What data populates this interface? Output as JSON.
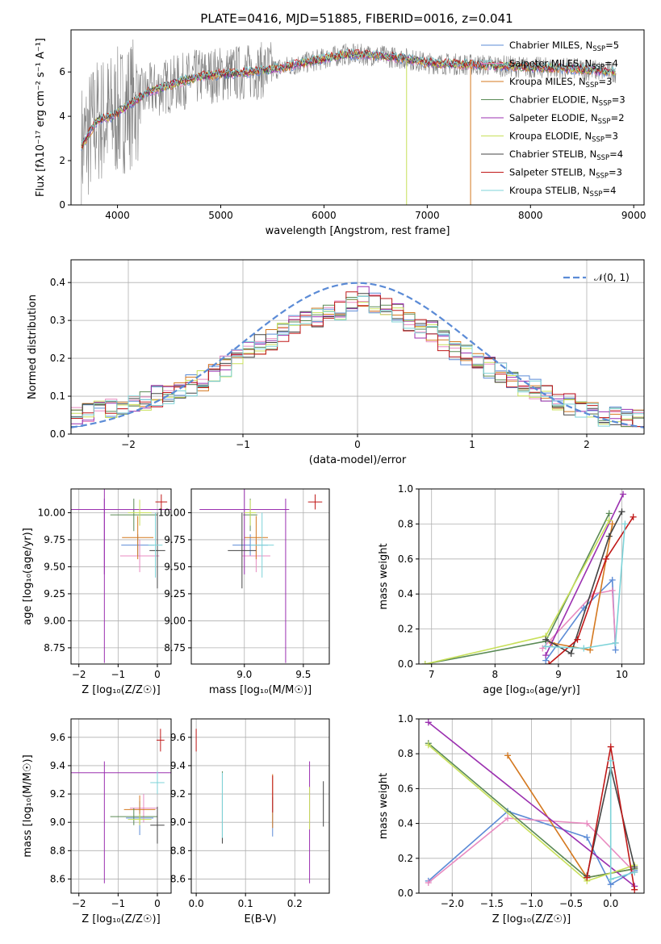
{
  "figure_title": "PLATE=0416, MJD=51885, FIBERID=0016, z=0.041",
  "legend_entries": [
    {
      "label": "Chabrier MILES, N",
      "sub": "SSP",
      "eq": "=5",
      "color": "#5b8bd6"
    },
    {
      "label": "Salpeter MILES, N",
      "sub": "SSP",
      "eq": "=4",
      "color": "#e88ac0"
    },
    {
      "label": "Kroupa MILES, N",
      "sub": "SSP",
      "eq": "=3",
      "color": "#d4781f"
    },
    {
      "label": "Chabrier ELODIE, N",
      "sub": "SSP",
      "eq": "=3",
      "color": "#5a8a55"
    },
    {
      "label": "Salpeter ELODIE, N",
      "sub": "SSP",
      "eq": "=2",
      "color": "#9b30b0"
    },
    {
      "label": "Kroupa ELODIE, N",
      "sub": "SSP",
      "eq": "=3",
      "color": "#c8e05a"
    },
    {
      "label": "Chabrier STELIB, N",
      "sub": "SSP",
      "eq": "=4",
      "color": "#444444"
    },
    {
      "label": "Salpeter STELIB, N",
      "sub": "SSP",
      "eq": "=3",
      "color": "#c01818"
    },
    {
      "label": "Kroupa STELIB, N",
      "sub": "SSP",
      "eq": "=4",
      "color": "#7dd3d8"
    }
  ],
  "norm_legend": "𝒩(0, 1)",
  "chart_data": [
    {
      "id": "spectrum",
      "type": "line",
      "xlabel": "wavelength [Angstrom, rest frame]",
      "ylabel": "Flux [fλ10⁻¹⁷ erg cm⁻² s⁻¹ A⁻¹]",
      "xlim": [
        3550,
        9100
      ],
      "ylim": [
        0,
        7.9
      ],
      "xticks": [
        4000,
        5000,
        6000,
        7000,
        8000,
        9000
      ],
      "xtick_labels": [
        "4000",
        "5000",
        "6000",
        "7000",
        "8000",
        "9000"
      ],
      "yticks": [
        0,
        2,
        4,
        6
      ],
      "ytick_labels": [
        "0",
        "2",
        "4",
        "6"
      ],
      "observed_continuum": [
        [
          3650,
          2.6
        ],
        [
          3800,
          3.8
        ],
        [
          3950,
          4.0
        ],
        [
          4100,
          4.5
        ],
        [
          4300,
          5.1
        ],
        [
          4500,
          5.4
        ],
        [
          4800,
          5.8
        ],
        [
          5000,
          5.9
        ],
        [
          5300,
          6.0
        ],
        [
          5600,
          6.2
        ],
        [
          5900,
          6.5
        ],
        [
          6200,
          6.8
        ],
        [
          6500,
          6.75
        ],
        [
          6800,
          6.6
        ],
        [
          7000,
          6.4
        ],
        [
          7300,
          6.35
        ],
        [
          7600,
          6.3
        ],
        [
          8000,
          6.2
        ],
        [
          8400,
          6.15
        ],
        [
          8830,
          6.0
        ]
      ]
    },
    {
      "id": "residuals",
      "type": "step",
      "xlabel": "(data-model)/error",
      "ylabel": "Normed distribution",
      "xlim": [
        -2.5,
        2.5
      ],
      "ylim": [
        0,
        0.46
      ],
      "xticks": [
        -2,
        -1,
        0,
        1,
        2
      ],
      "xtick_labels": [
        "−2",
        "−1",
        "0",
        "1",
        "2"
      ],
      "yticks": [
        0,
        0.1,
        0.2,
        0.3,
        0.4
      ],
      "ytick_labels": [
        "0.0",
        "0.1",
        "0.2",
        "0.3",
        "0.4"
      ],
      "bin_edges_start": -2.5,
      "bin_width": 0.1,
      "mean_hist": [
        0.045,
        0.052,
        0.058,
        0.065,
        0.075,
        0.08,
        0.09,
        0.1,
        0.11,
        0.12,
        0.13,
        0.14,
        0.16,
        0.18,
        0.2,
        0.22,
        0.235,
        0.25,
        0.27,
        0.29,
        0.3,
        0.31,
        0.32,
        0.33,
        0.35,
        0.36,
        0.345,
        0.33,
        0.315,
        0.3,
        0.28,
        0.27,
        0.25,
        0.225,
        0.205,
        0.19,
        0.175,
        0.16,
        0.145,
        0.13,
        0.115,
        0.1,
        0.09,
        0.08,
        0.07,
        0.06,
        0.05,
        0.045,
        0.04,
        0.035
      ],
      "gaussian": {
        "mu": 0,
        "sigma": 1
      }
    },
    {
      "id": "age_vs_Z",
      "type": "errorbar",
      "xlabel": "Z [log₁₀(Z/Z☉)]",
      "ylabel": "age  [log₁₀(age/yr)]",
      "xlim": [
        -2.2,
        0.35
      ],
      "ylim": [
        8.6,
        10.22
      ],
      "xticks": [
        -2,
        -1,
        0
      ],
      "xtick_labels": [
        "−2",
        "−1",
        "0"
      ],
      "yticks": [
        8.75,
        9.0,
        9.25,
        9.5,
        9.75,
        10.0
      ],
      "ytick_labels": [
        "8.75",
        "9.00",
        "9.25",
        "9.50",
        "9.75",
        "10.00"
      ],
      "points": [
        {
          "model": 0,
          "x": -0.5,
          "xerr": 0.42,
          "y": 9.7,
          "yerr": 0.1
        },
        {
          "model": 1,
          "x": -0.45,
          "xerr": 0.5,
          "y": 9.6,
          "yerr": 0.15
        },
        {
          "model": 2,
          "x": -0.5,
          "xerr": 0.4,
          "y": 9.77,
          "yerr": 0.2
        },
        {
          "model": 3,
          "x": -0.6,
          "xerr": 0.6,
          "y": 9.98,
          "yerr": 0.15
        },
        {
          "model": 4,
          "x": -1.35,
          "xerr": 1.7,
          "y": 10.03,
          "yerr": 0.6
        },
        {
          "model": 4,
          "x": -1.35,
          "xerr": 0.0,
          "y": 9.37,
          "yerr": 0.76
        },
        {
          "model": 5,
          "x": -0.45,
          "xerr": 0.3,
          "y": 10.0,
          "yerr": 0.12
        },
        {
          "model": 6,
          "x": 0.0,
          "xerr": 0.2,
          "y": 9.65,
          "yerr": 0.35
        },
        {
          "model": 7,
          "x": 0.1,
          "xerr": 0.15,
          "y": 10.1,
          "yerr": 0.07
        },
        {
          "model": 8,
          "x": -0.05,
          "xerr": 0.18,
          "y": 9.7,
          "yerr": 0.3
        }
      ]
    },
    {
      "id": "age_vs_mass",
      "type": "errorbar",
      "xlabel": "mass [log₁₀(M/M☉)]",
      "ylabel": "",
      "xlim": [
        8.55,
        9.72
      ],
      "ylim": [
        8.6,
        10.22
      ],
      "xticks": [
        9.0,
        9.5
      ],
      "xtick_labels": [
        "9.0",
        "9.5"
      ],
      "yticks": [
        8.75,
        9.0,
        9.25,
        9.5,
        9.75,
        10.0
      ],
      "ytick_labels": [
        "8.75",
        "9.00",
        "9.25",
        "9.50",
        "9.75",
        "10.00"
      ],
      "points": [
        {
          "model": 0,
          "x": 9.05,
          "xerr": 0.15,
          "y": 9.7,
          "yerr": 0.1
        },
        {
          "model": 1,
          "x": 9.1,
          "xerr": 0.12,
          "y": 9.6,
          "yerr": 0.15
        },
        {
          "model": 2,
          "x": 9.1,
          "xerr": 0.1,
          "y": 9.77,
          "yerr": 0.2
        },
        {
          "model": 3,
          "x": 9.05,
          "xerr": 0.06,
          "y": 9.98,
          "yerr": 0.15
        },
        {
          "model": 4,
          "x": 9.0,
          "xerr": 0.38,
          "y": 10.03,
          "yerr": 0.6
        },
        {
          "model": 4,
          "x": 9.35,
          "xerr": 0.0,
          "y": 9.37,
          "yerr": 0.76
        },
        {
          "model": 5,
          "x": 9.05,
          "xerr": 0.05,
          "y": 10.0,
          "yerr": 0.12
        },
        {
          "model": 6,
          "x": 8.98,
          "xerr": 0.12,
          "y": 9.65,
          "yerr": 0.35
        },
        {
          "model": 7,
          "x": 9.6,
          "xerr": 0.06,
          "y": 10.1,
          "yerr": 0.07
        },
        {
          "model": 8,
          "x": 9.15,
          "xerr": 0.1,
          "y": 9.7,
          "yerr": 0.3
        }
      ]
    },
    {
      "id": "mw_vs_age",
      "type": "line",
      "xlabel": "age  [log₁₀(age/yr)]",
      "ylabel": "mass weight",
      "xlim": [
        6.8,
        10.35
      ],
      "ylim": [
        0,
        1.0
      ],
      "xticks": [
        7,
        8,
        9,
        10
      ],
      "xtick_labels": [
        "7",
        "8",
        "9",
        "10"
      ],
      "yticks": [
        0,
        0.2,
        0.4,
        0.6,
        0.8,
        1.0
      ],
      "ytick_labels": [
        "0.0",
        "0.2",
        "0.4",
        "0.6",
        "0.8",
        "1.0"
      ],
      "series": [
        {
          "model": 0,
          "points": [
            [
              8.8,
              0.02
            ],
            [
              9.4,
              0.32
            ],
            [
              9.85,
              0.48
            ],
            [
              9.9,
              0.08
            ]
          ]
        },
        {
          "model": 1,
          "points": [
            [
              8.75,
              0.09
            ],
            [
              9.55,
              0.4
            ],
            [
              9.85,
              0.42
            ],
            [
              9.9,
              0.12
            ]
          ]
        },
        {
          "model": 2,
          "points": [
            [
              8.9,
              0.12
            ],
            [
              9.5,
              0.08
            ],
            [
              9.85,
              0.8
            ]
          ]
        },
        {
          "model": 3,
          "points": [
            [
              6.9,
              0.0
            ],
            [
              8.8,
              0.13
            ],
            [
              9.8,
              0.86
            ]
          ]
        },
        {
          "model": 4,
          "points": [
            [
              8.8,
              0.05
            ],
            [
              10.02,
              0.97
            ]
          ]
        },
        {
          "model": 5,
          "points": [
            [
              6.9,
              0.0
            ],
            [
              8.8,
              0.16
            ],
            [
              9.8,
              0.82
            ]
          ]
        },
        {
          "model": 6,
          "points": [
            [
              8.8,
              0.14
            ],
            [
              9.2,
              0.06
            ],
            [
              9.8,
              0.73
            ],
            [
              10.0,
              0.87
            ]
          ]
        },
        {
          "model": 7,
          "points": [
            [
              8.85,
              0.0
            ],
            [
              9.3,
              0.14
            ],
            [
              9.75,
              0.6
            ],
            [
              10.18,
              0.84
            ]
          ]
        },
        {
          "model": 8,
          "points": [
            [
              8.8,
              0.1
            ],
            [
              9.4,
              0.09
            ],
            [
              9.9,
              0.12
            ],
            [
              10.05,
              0.8
            ]
          ]
        }
      ]
    },
    {
      "id": "mass_vs_Z",
      "type": "errorbar",
      "xlabel": "Z [log₁₀(Z/Z☉)]",
      "ylabel": "mass [log₁₀(M/M☉)]",
      "xlim": [
        -2.2,
        0.35
      ],
      "ylim": [
        8.5,
        9.73
      ],
      "xticks": [
        -2,
        -1,
        0
      ],
      "xtick_labels": [
        "−2",
        "−1",
        "0"
      ],
      "yticks": [
        8.6,
        8.8,
        9.0,
        9.2,
        9.4,
        9.6
      ],
      "ytick_labels": [
        "8.6",
        "8.8",
        "9.0",
        "9.2",
        "9.4",
        "9.6"
      ],
      "points": [
        {
          "model": 0,
          "x": -0.45,
          "xerr": 0.35,
          "y": 9.03,
          "yerr": 0.12
        },
        {
          "model": 1,
          "x": -0.35,
          "xerr": 0.35,
          "y": 9.1,
          "yerr": 0.1
        },
        {
          "model": 2,
          "x": -0.45,
          "xerr": 0.4,
          "y": 9.09,
          "yerr": 0.1
        },
        {
          "model": 3,
          "x": -0.6,
          "xerr": 0.6,
          "y": 9.04,
          "yerr": 0.06
        },
        {
          "model": 4,
          "x": -1.35,
          "xerr": 1.7,
          "y": 9.35,
          "yerr": 0.0
        },
        {
          "model": 4,
          "x": -1.35,
          "xerr": 0.0,
          "y": 9.0,
          "yerr": 0.43
        },
        {
          "model": 5,
          "x": -0.45,
          "xerr": 0.3,
          "y": 9.02,
          "yerr": 0.04
        },
        {
          "model": 6,
          "x": 0.0,
          "xerr": 0.18,
          "y": 8.98,
          "yerr": 0.13
        },
        {
          "model": 7,
          "x": 0.08,
          "xerr": 0.1,
          "y": 9.58,
          "yerr": 0.08
        },
        {
          "model": 8,
          "x": 0.0,
          "xerr": 0.18,
          "y": 9.28,
          "yerr": 0.08
        }
      ]
    },
    {
      "id": "mass_vs_EBV",
      "type": "errorbar",
      "xlabel": "E(B-V)",
      "ylabel": "",
      "xlim": [
        -0.01,
        0.27
      ],
      "ylim": [
        8.5,
        9.73
      ],
      "xticks": [
        0.0,
        0.1,
        0.2
      ],
      "xtick_labels": [
        "0.0",
        "0.1",
        "0.2"
      ],
      "yticks": [
        8.6,
        8.8,
        9.0,
        9.2,
        9.4,
        9.6
      ],
      "ytick_labels": [
        "8.6",
        "8.8",
        "9.0",
        "9.2",
        "9.4",
        "9.6"
      ],
      "points": [
        {
          "model": 0,
          "x": 0.155,
          "xerr": 0,
          "y": 9.04,
          "yerr": 0.14
        },
        {
          "model": 2,
          "x": 0.155,
          "xerr": 0,
          "y": 9.15,
          "yerr": 0.19
        },
        {
          "model": 3,
          "x": 0.053,
          "xerr": 0,
          "y": 9.12,
          "yerr": 0.24
        },
        {
          "model": 4,
          "x": 0.23,
          "xerr": 0,
          "y": 9.0,
          "yerr": 0.43
        },
        {
          "model": 5,
          "x": 0.23,
          "xerr": 0,
          "y": 9.1,
          "yerr": 0.15
        },
        {
          "model": 6,
          "x": 0.053,
          "xerr": 0,
          "y": 9.02,
          "yerr": 0.17
        },
        {
          "model": 6,
          "x": 0.258,
          "xerr": 0,
          "y": 9.13,
          "yerr": 0.16
        },
        {
          "model": 7,
          "x": 0.0,
          "xerr": 0,
          "y": 9.58,
          "yerr": 0.08
        },
        {
          "model": 7,
          "x": 0.155,
          "xerr": 0,
          "y": 9.2,
          "yerr": 0.13
        },
        {
          "model": 8,
          "x": 0.053,
          "xerr": 0,
          "y": 9.12,
          "yerr": 0.23
        }
      ]
    },
    {
      "id": "mw_vs_Z",
      "type": "line",
      "xlabel": "Z [log₁₀(Z/Z☉)]",
      "ylabel": "mass weight",
      "xlim": [
        -2.42,
        0.42
      ],
      "ylim": [
        0,
        1.0
      ],
      "xticks": [
        -2.0,
        -1.5,
        -1.0,
        -0.5,
        0.0
      ],
      "xtick_labels": [
        "−2.0",
        "−1.5",
        "−1.0",
        "−0.5",
        "0.0"
      ],
      "yticks": [
        0,
        0.2,
        0.4,
        0.6,
        0.8,
        1.0
      ],
      "ytick_labels": [
        "0.0",
        "0.2",
        "0.4",
        "0.6",
        "0.8",
        "1.0"
      ],
      "series": [
        {
          "model": 0,
          "points": [
            [
              -2.3,
              0.07
            ],
            [
              -1.3,
              0.47
            ],
            [
              -0.3,
              0.32
            ],
            [
              0.0,
              0.05
            ],
            [
              0.3,
              0.13
            ]
          ]
        },
        {
          "model": 1,
          "points": [
            [
              -2.3,
              0.06
            ],
            [
              -1.3,
              0.43
            ],
            [
              -0.3,
              0.4
            ],
            [
              0.3,
              0.12
            ]
          ]
        },
        {
          "model": 2,
          "points": [
            [
              -1.3,
              0.79
            ],
            [
              -0.3,
              0.09
            ],
            [
              0.3,
              0.14
            ]
          ]
        },
        {
          "model": 3,
          "points": [
            [
              -2.3,
              0.86
            ],
            [
              -0.3,
              0.09
            ],
            [
              0.3,
              0.14
            ]
          ]
        },
        {
          "model": 4,
          "points": [
            [
              -2.3,
              0.98
            ],
            [
              0.3,
              0.04
            ]
          ]
        },
        {
          "model": 5,
          "points": [
            [
              -2.3,
              0.85
            ],
            [
              -0.3,
              0.07
            ],
            [
              0.3,
              0.16
            ]
          ]
        },
        {
          "model": 6,
          "points": [
            [
              -0.3,
              0.1
            ],
            [
              0.0,
              0.72
            ],
            [
              0.3,
              0.15
            ]
          ]
        },
        {
          "model": 7,
          "points": [
            [
              -0.3,
              0.09
            ],
            [
              0.0,
              0.84
            ],
            [
              0.3,
              0.02
            ]
          ]
        },
        {
          "model": 8,
          "points": [
            [
              0.0,
              0.76
            ],
            [
              0.0,
              0.08
            ],
            [
              0.3,
              0.12
            ]
          ]
        }
      ]
    }
  ]
}
